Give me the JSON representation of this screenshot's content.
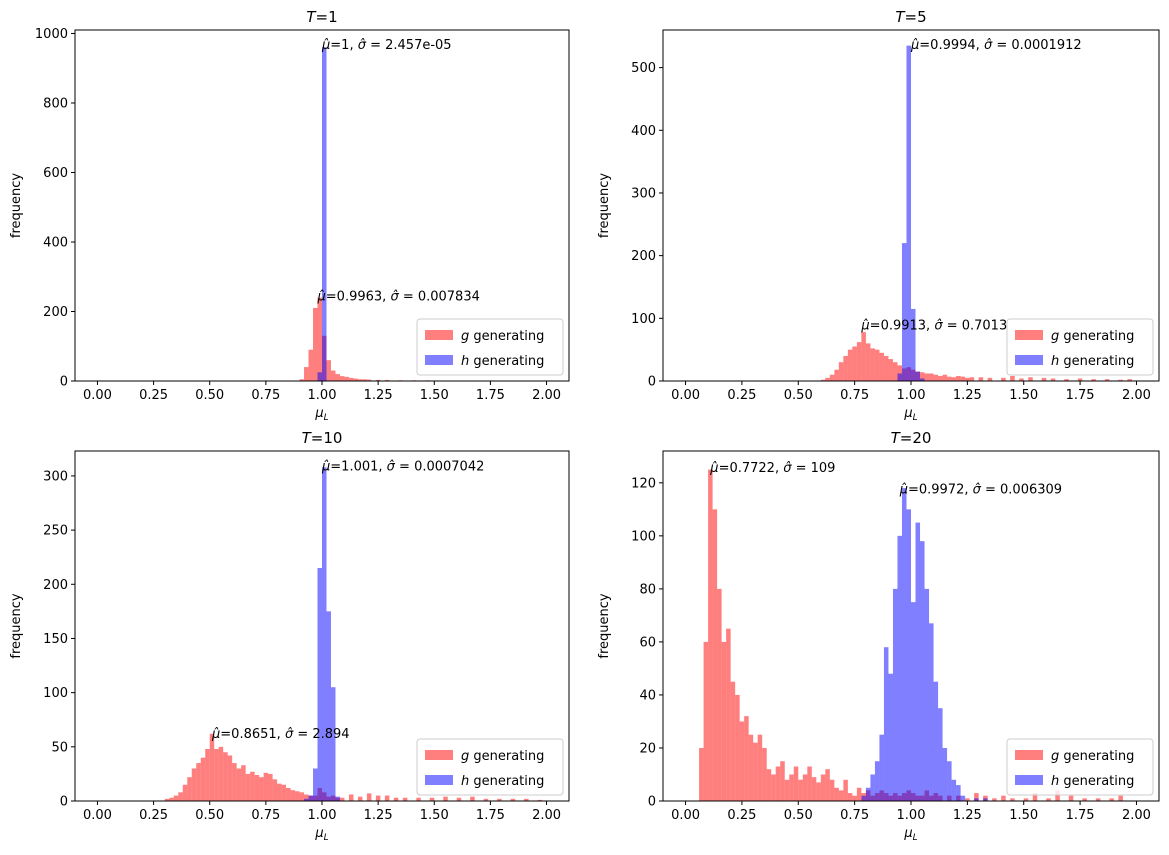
{
  "figure": {
    "legend": {
      "g_label": "generating",
      "g_var": "g",
      "h_label": "generating",
      "h_var": "h",
      "g_color": "#ff0000",
      "h_color": "#0000ff",
      "alpha": 0.5
    },
    "xlabel_base": "μ",
    "xlabel_sub": "L",
    "ylabel": "frequency"
  },
  "chart_data": [
    {
      "type": "bar",
      "title": "T=1",
      "title_var": "T",
      "title_rest": "=1",
      "xlim": [
        -0.1,
        2.1
      ],
      "ylim": [
        0,
        1010
      ],
      "xticks": [
        "0.00",
        "0.25",
        "0.50",
        "0.75",
        "1.00",
        "1.25",
        "1.50",
        "1.75",
        "2.00"
      ],
      "yticks": [
        0,
        200,
        400,
        600,
        800,
        1000
      ],
      "bin_width": 0.02,
      "series": [
        {
          "name": "g generating",
          "key": "g",
          "color": "#ff0000",
          "x": [
            0.91,
            0.93,
            0.95,
            0.97,
            0.99,
            1.01,
            1.03,
            1.05,
            1.07,
            1.09,
            1.11,
            1.13,
            1.15,
            1.17,
            1.19,
            1.21,
            1.25,
            1.29,
            1.35,
            1.41,
            1.47,
            1.55
          ],
          "values": [
            5,
            40,
            90,
            210,
            240,
            130,
            60,
            30,
            20,
            14,
            12,
            9,
            7,
            5,
            5,
            4,
            3,
            3,
            2,
            2,
            2,
            1
          ]
        },
        {
          "name": "h generating",
          "key": "h",
          "color": "#0000ff",
          "x": [
            0.99,
            1.01
          ],
          "values": [
            25,
            960
          ]
        }
      ],
      "annotations": [
        {
          "mu": "1",
          "sigma": "2.457e-05",
          "x": 1.0,
          "y": 955
        },
        {
          "mu": "0.9963",
          "sigma": "0.007834",
          "x": 0.98,
          "y": 232
        }
      ]
    },
    {
      "type": "bar",
      "title": "T=5",
      "title_var": "T",
      "title_rest": "=5",
      "xlim": [
        -0.1,
        2.1
      ],
      "ylim": [
        0,
        560
      ],
      "xticks": [
        "0.00",
        "0.25",
        "0.50",
        "0.75",
        "1.00",
        "1.25",
        "1.50",
        "1.75",
        "2.00"
      ],
      "yticks": [
        0,
        100,
        200,
        300,
        400,
        500
      ],
      "bin_width": 0.02,
      "series": [
        {
          "name": "g generating",
          "key": "g",
          "color": "#ff0000",
          "x": [
            0.61,
            0.63,
            0.65,
            0.67,
            0.69,
            0.71,
            0.73,
            0.75,
            0.77,
            0.79,
            0.81,
            0.83,
            0.85,
            0.87,
            0.89,
            0.91,
            0.93,
            0.95,
            0.97,
            0.99,
            1.01,
            1.03,
            1.05,
            1.07,
            1.09,
            1.11,
            1.13,
            1.15,
            1.17,
            1.19,
            1.21,
            1.23,
            1.25,
            1.27,
            1.31,
            1.35,
            1.41,
            1.45,
            1.49,
            1.53,
            1.59,
            1.63,
            1.69,
            1.75,
            1.81,
            1.87,
            1.93,
            1.97
          ],
          "values": [
            2,
            5,
            10,
            18,
            30,
            40,
            50,
            55,
            62,
            78,
            60,
            52,
            50,
            45,
            40,
            35,
            30,
            25,
            20,
            22,
            18,
            15,
            14,
            12,
            12,
            10,
            8,
            10,
            7,
            6,
            8,
            7,
            5,
            6,
            6,
            5,
            5,
            8,
            4,
            6,
            5,
            4,
            3,
            4,
            3,
            3,
            2,
            3
          ]
        },
        {
          "name": "h generating",
          "key": "h",
          "color": "#0000ff",
          "x": [
            0.95,
            0.97,
            0.99,
            1.01,
            1.03,
            1.05
          ],
          "values": [
            12,
            220,
            535,
            115,
            15,
            4
          ]
        }
      ],
      "annotations": [
        {
          "mu": "0.9994",
          "sigma": "0.0001912",
          "x": 1.0,
          "y": 530
        },
        {
          "mu": "0.9913",
          "sigma": "0.7013",
          "x": 0.78,
          "y": 82
        }
      ]
    },
    {
      "type": "bar",
      "title": "T=10",
      "title_var": "T",
      "title_rest": "=10",
      "xlim": [
        -0.1,
        2.1
      ],
      "ylim": [
        0,
        323
      ],
      "xticks": [
        "0.00",
        "0.25",
        "0.50",
        "0.75",
        "1.00",
        "1.25",
        "1.50",
        "1.75",
        "2.00"
      ],
      "yticks": [
        0,
        50,
        100,
        150,
        200,
        250,
        300
      ],
      "bin_width": 0.02,
      "series": [
        {
          "name": "g generating",
          "key": "g",
          "color": "#ff0000",
          "x": [
            0.31,
            0.33,
            0.35,
            0.37,
            0.39,
            0.41,
            0.43,
            0.45,
            0.47,
            0.49,
            0.51,
            0.53,
            0.55,
            0.57,
            0.59,
            0.61,
            0.63,
            0.65,
            0.67,
            0.69,
            0.71,
            0.73,
            0.75,
            0.77,
            0.79,
            0.81,
            0.83,
            0.85,
            0.87,
            0.89,
            0.91,
            0.93,
            0.95,
            0.97,
            0.99,
            1.01,
            1.03,
            1.05,
            1.07,
            1.09,
            1.13,
            1.17,
            1.21,
            1.25,
            1.29,
            1.33,
            1.37,
            1.43,
            1.49,
            1.55,
            1.61,
            1.67,
            1.73,
            1.79,
            1.85,
            1.91,
            1.97
          ],
          "values": [
            2,
            3,
            5,
            8,
            15,
            22,
            30,
            35,
            40,
            48,
            62,
            48,
            50,
            45,
            42,
            35,
            30,
            33,
            25,
            27,
            24,
            22,
            26,
            25,
            20,
            16,
            15,
            12,
            10,
            9,
            8,
            6,
            5,
            5,
            12,
            8,
            4,
            5,
            3,
            3,
            6,
            4,
            7,
            5,
            5,
            3,
            3,
            3,
            3,
            4,
            3,
            4,
            2,
            2,
            2,
            2,
            1
          ]
        },
        {
          "name": "h generating",
          "key": "h",
          "color": "#0000ff",
          "x": [
            0.93,
            0.95,
            0.97,
            0.99,
            1.01,
            1.03,
            1.05,
            1.07
          ],
          "values": [
            2,
            5,
            30,
            215,
            308,
            175,
            105,
            4
          ]
        }
      ],
      "annotations": [
        {
          "mu": "1.001",
          "sigma": "0.0007042",
          "x": 1.0,
          "y": 305
        },
        {
          "mu": "0.8651",
          "sigma": "2.894",
          "x": 0.51,
          "y": 58
        }
      ]
    },
    {
      "type": "bar",
      "title": "T=20",
      "title_var": "T",
      "title_rest": "=20",
      "xlim": [
        -0.1,
        2.1
      ],
      "ylim": [
        0,
        132
      ],
      "xticks": [
        "0.00",
        "0.25",
        "0.50",
        "0.75",
        "1.00",
        "1.25",
        "1.50",
        "1.75",
        "2.00"
      ],
      "yticks": [
        0,
        20,
        40,
        60,
        80,
        100,
        120
      ],
      "bin_width": 0.02,
      "series": [
        {
          "name": "g generating",
          "key": "g",
          "color": "#ff0000",
          "x": [
            0.07,
            0.09,
            0.11,
            0.13,
            0.15,
            0.17,
            0.19,
            0.21,
            0.23,
            0.25,
            0.27,
            0.29,
            0.31,
            0.33,
            0.35,
            0.37,
            0.39,
            0.41,
            0.43,
            0.45,
            0.47,
            0.49,
            0.51,
            0.53,
            0.55,
            0.57,
            0.59,
            0.61,
            0.63,
            0.65,
            0.67,
            0.69,
            0.71,
            0.73,
            0.75,
            0.77,
            0.79,
            0.81,
            0.83,
            0.85,
            0.87,
            0.89,
            0.91,
            0.93,
            0.95,
            0.97,
            0.99,
            1.01,
            1.03,
            1.05,
            1.07,
            1.09,
            1.11,
            1.13,
            1.17,
            1.21,
            1.25,
            1.29,
            1.33,
            1.37,
            1.41,
            1.45,
            1.51,
            1.55,
            1.61,
            1.65,
            1.71,
            1.77,
            1.83,
            1.89,
            1.93
          ],
          "values": [
            20,
            60,
            125,
            110,
            80,
            60,
            65,
            45,
            40,
            30,
            32,
            25,
            22,
            25,
            20,
            12,
            10,
            13,
            15,
            8,
            10,
            13,
            8,
            10,
            13,
            9,
            7,
            10,
            12,
            8,
            5,
            4,
            8,
            3,
            2,
            5,
            3,
            4,
            2,
            3,
            4,
            3,
            2,
            3,
            2,
            3,
            4,
            3,
            2,
            2,
            4,
            2,
            3,
            2,
            2,
            2,
            1,
            3,
            2,
            1,
            2,
            1,
            1,
            3,
            1,
            4,
            2,
            1,
            1,
            1,
            2
          ]
        },
        {
          "name": "h generating",
          "key": "h",
          "color": "#0000ff",
          "x": [
            0.79,
            0.81,
            0.83,
            0.85,
            0.87,
            0.89,
            0.91,
            0.93,
            0.95,
            0.97,
            0.99,
            1.01,
            1.03,
            1.05,
            1.07,
            1.09,
            1.11,
            1.13,
            1.15,
            1.17,
            1.19,
            1.21,
            1.23,
            1.29,
            1.33
          ],
          "values": [
            2,
            5,
            10,
            15,
            25,
            58,
            48,
            80,
            100,
            118,
            110,
            75,
            105,
            98,
            80,
            67,
            45,
            35,
            20,
            15,
            8,
            6,
            2,
            1,
            1
          ]
        }
      ],
      "annotations": [
        {
          "mu": "0.7722",
          "sigma": "109",
          "x": 0.11,
          "y": 124
        },
        {
          "mu": "0.9972",
          "sigma": "0.006309",
          "x": 0.95,
          "y": 116
        }
      ]
    }
  ]
}
